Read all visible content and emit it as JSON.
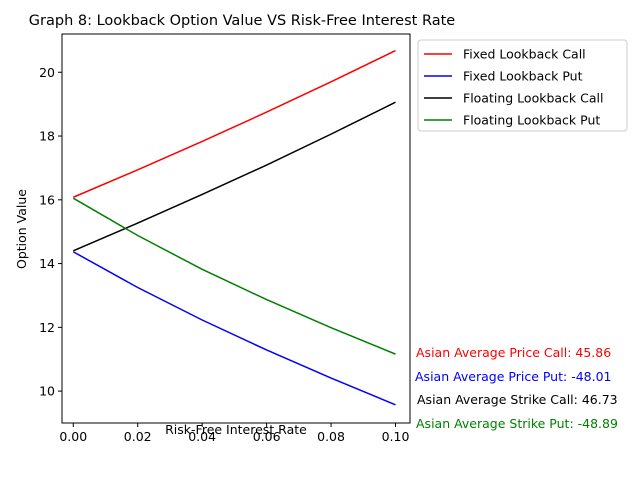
{
  "chart_data": {
    "type": "line",
    "title": "Graph 8: Lookback Option Value VS Risk-Free Interest Rate",
    "xlabel": "Risk-Free Interest Rate",
    "ylabel": "Option Value",
    "xlim": [
      -0.0035,
      0.1045
    ],
    "ylim": [
      9.0,
      21.2
    ],
    "x_ticks": [
      0.0,
      0.02,
      0.04,
      0.06,
      0.08,
      0.1
    ],
    "x_tick_labels": [
      "0.00",
      "0.02",
      "0.04",
      "0.06",
      "0.08",
      "0.10"
    ],
    "y_ticks": [
      10,
      12,
      14,
      16,
      18,
      20
    ],
    "y_tick_labels": [
      "10",
      "12",
      "14",
      "16",
      "18",
      "20"
    ],
    "grid": false,
    "legend_position": "outside-top-right",
    "x": [
      0.0,
      0.02,
      0.04,
      0.06,
      0.08,
      0.1
    ],
    "series": [
      {
        "name": "Fixed Lookback Call",
        "color": "#ff0000",
        "values": [
          16.08,
          16.94,
          17.83,
          18.75,
          19.7,
          20.68
        ]
      },
      {
        "name": "Fixed Lookback Put",
        "color": "#0000ff",
        "values": [
          14.37,
          13.25,
          12.23,
          11.29,
          10.41,
          9.57
        ]
      },
      {
        "name": "Floating Lookback Call",
        "color": "#000000",
        "values": [
          14.4,
          15.27,
          16.17,
          17.09,
          18.06,
          19.06
        ]
      },
      {
        "name": "Floating Lookback Put",
        "color": "#008000",
        "values": [
          16.05,
          14.88,
          13.82,
          12.87,
          11.99,
          11.16
        ]
      }
    ],
    "annotations": [
      {
        "text": "Asian Average Price Call: 45.86",
        "color": "#ff0000"
      },
      {
        "text": "Asian Average Price Put: -48.01",
        "color": "#0000ff"
      },
      {
        "text": "Asian Average Strike Call: 46.73",
        "color": "#000000"
      },
      {
        "text": "Asian Average Strike Put: -48.89",
        "color": "#008000"
      }
    ]
  }
}
